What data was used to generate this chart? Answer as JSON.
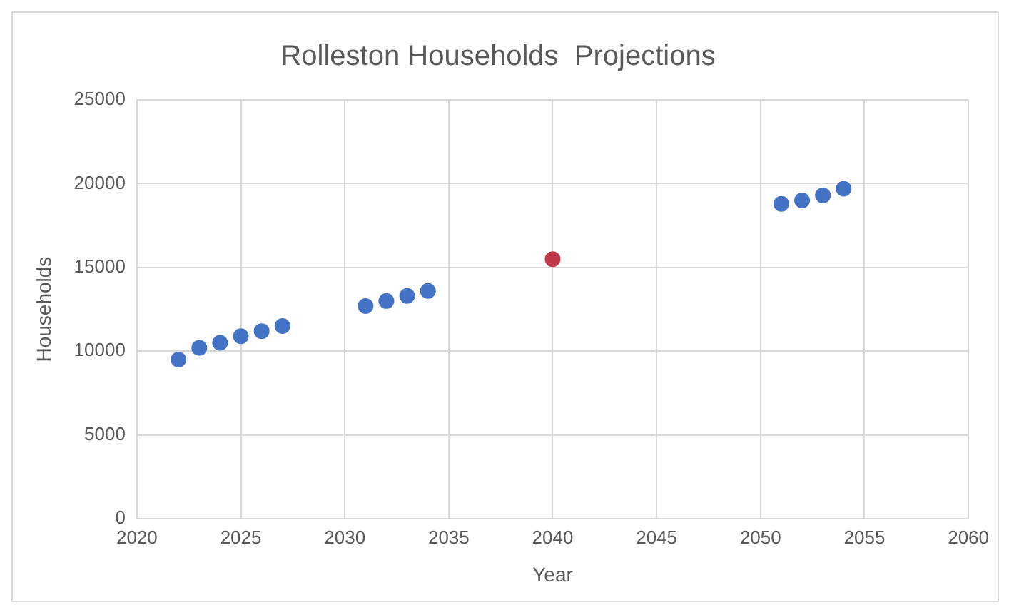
{
  "chart_data": {
    "type": "scatter",
    "title": "Rolleston Households  Projections",
    "xlabel": "Year",
    "ylabel": "Households",
    "series": [
      {
        "color": "#4472c4",
        "x": [
          2022,
          2023,
          2024,
          2025,
          2026,
          2027,
          2031,
          2032,
          2033,
          2034,
          2051,
          2052,
          2053,
          2054
        ],
        "values": [
          9500,
          10200,
          10500,
          10900,
          11200,
          11500,
          12700,
          13000,
          13300,
          13600,
          18800,
          19000,
          19300,
          19700
        ]
      },
      {
        "color": "#c0394b",
        "x": [
          2040
        ],
        "values": [
          15500
        ]
      }
    ],
    "xlim": [
      2020,
      2060
    ],
    "xticks": [
      2020,
      2025,
      2030,
      2035,
      2040,
      2045,
      2050,
      2055,
      2060
    ],
    "ylim": [
      0,
      25000
    ],
    "yticks": [
      0,
      5000,
      10000,
      15000,
      20000,
      25000
    ],
    "grid": true,
    "marker": "circle"
  }
}
